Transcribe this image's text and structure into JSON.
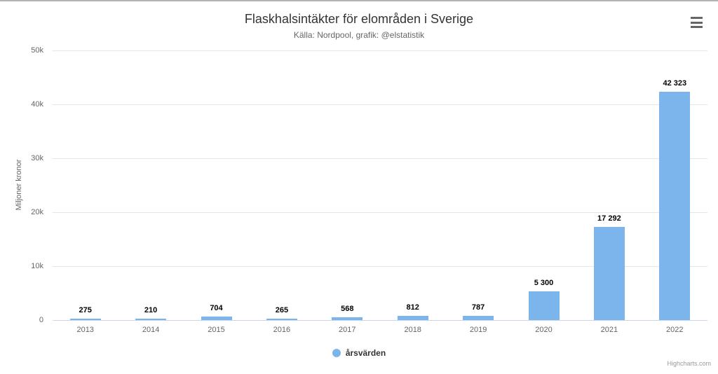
{
  "header": {
    "title": "Flaskhalsintäkter för elområden i Sverige",
    "subtitle": "Källa: Nordpool, grafik: @elstatistik"
  },
  "legend": {
    "label": "årsvärden",
    "marker_color": "#7cb5ec"
  },
  "credits": {
    "label": "Highcharts.com"
  },
  "colors": {
    "bar": "#7cb5ec",
    "title": "#333333",
    "subtitle": "#666666",
    "axis_label": "#666666",
    "data_label": "#000000",
    "gridline": "#e6e6e6",
    "axis_line": "#ccd6eb",
    "credits": "#999999"
  },
  "chart_data": {
    "type": "bar",
    "title": "Flaskhalsintäkter för elområden i Sverige",
    "subtitle": "Källa: Nordpool, grafik: @elstatistik",
    "categories": [
      "2013",
      "2014",
      "2015",
      "2016",
      "2017",
      "2018",
      "2019",
      "2020",
      "2021",
      "2022"
    ],
    "series": [
      {
        "name": "årsvärden",
        "values": [
          275,
          210,
          704,
          265,
          568,
          812,
          787,
          5300,
          17292,
          42323
        ],
        "value_labels": [
          "275",
          "210",
          "704",
          "265",
          "568",
          "812",
          "787",
          "5 300",
          "17 292",
          "42 323"
        ]
      }
    ],
    "xlabel": "",
    "ylabel": "Miljoner kronor",
    "ylim": [
      0,
      50000
    ],
    "yticks": [
      {
        "value": 0,
        "label": "0"
      },
      {
        "value": 10000,
        "label": "10k"
      },
      {
        "value": 20000,
        "label": "20k"
      },
      {
        "value": 30000,
        "label": "30k"
      },
      {
        "value": 40000,
        "label": "40k"
      },
      {
        "value": 50000,
        "label": "50k"
      }
    ],
    "grid": true,
    "legend_position": "bottom-center"
  }
}
